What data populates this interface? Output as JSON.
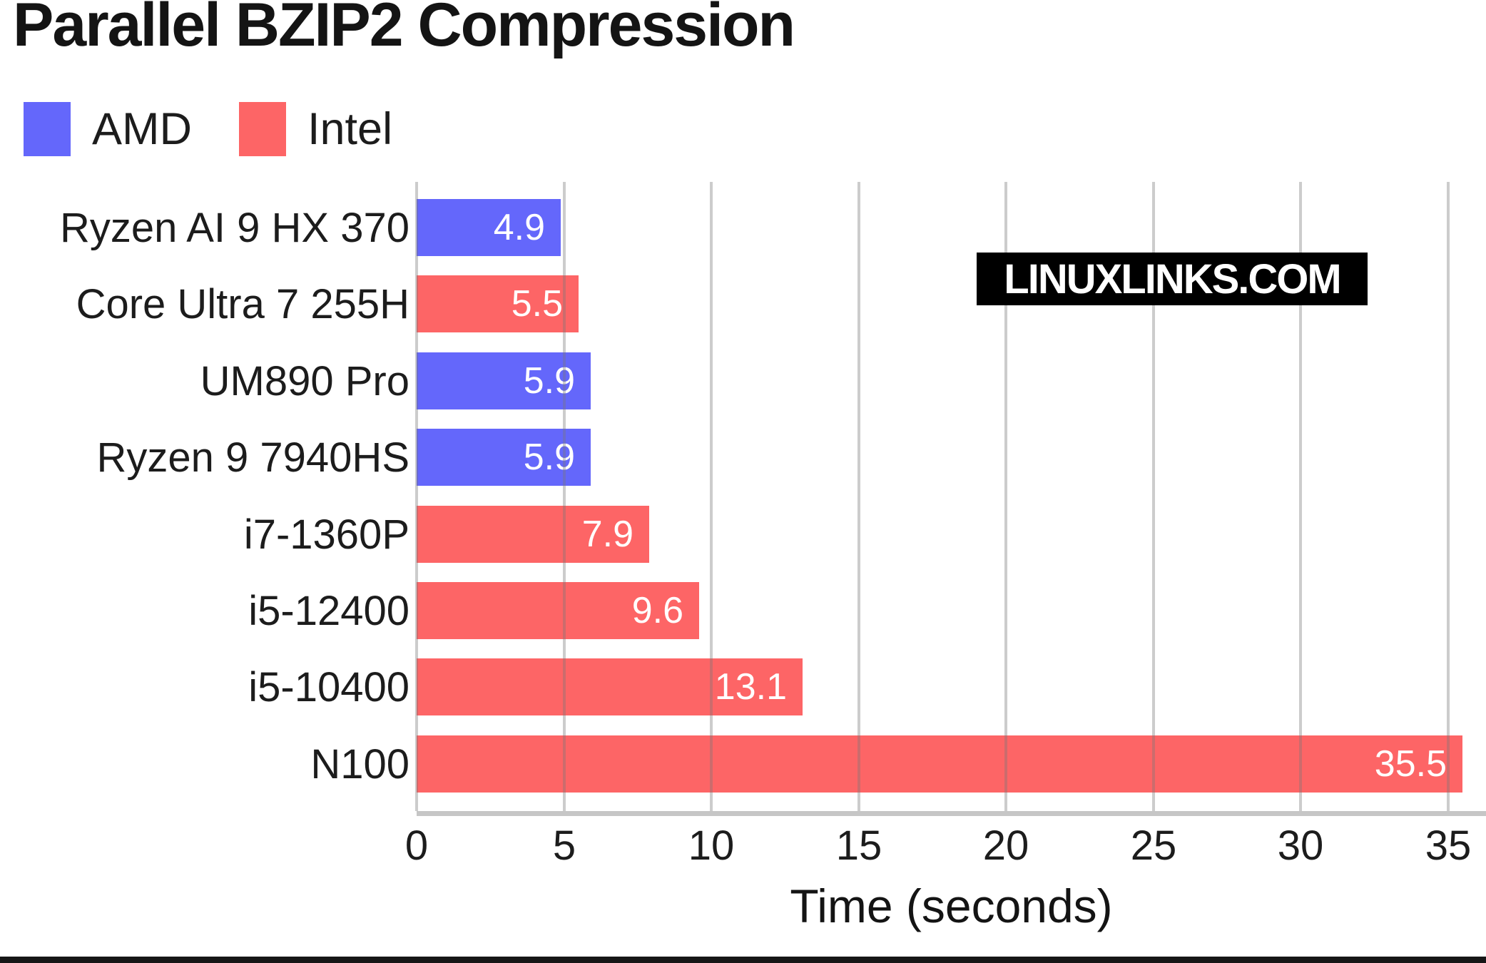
{
  "title": "Parallel BZIP2 Compression",
  "legend": {
    "items": [
      {
        "label": "AMD",
        "color": "#6467fb"
      },
      {
        "label": "Intel",
        "color": "#fd6566"
      }
    ]
  },
  "watermark": {
    "text": "LINUXLINKS.COM"
  },
  "axis": {
    "xlabel": "Time (seconds)",
    "ticks": [
      "0",
      "5",
      "10",
      "15",
      "20",
      "25",
      "30",
      "35"
    ]
  },
  "chart_data": {
    "type": "bar",
    "orientation": "horizontal",
    "title": "Parallel BZIP2 Compression",
    "xlabel": "Time (seconds)",
    "ylabel": "",
    "xlim": [
      0,
      36.3
    ],
    "xticks": [
      0,
      5,
      10,
      15,
      20,
      25,
      30,
      35
    ],
    "grid": true,
    "legend_position": "top-left",
    "value_label_format": "one-decimal-inside-bar-end",
    "categories": [
      "Ryzen AI 9 HX 370",
      "Core Ultra 7 255H",
      "UM890 Pro",
      "Ryzen 9 7940HS",
      "i7-1360P",
      "i5-12400",
      "i5-10400",
      "N100"
    ],
    "values": [
      4.9,
      5.5,
      5.9,
      5.9,
      7.9,
      9.6,
      13.1,
      35.5
    ],
    "point_series": [
      "AMD",
      "Intel",
      "AMD",
      "AMD",
      "Intel",
      "Intel",
      "Intel",
      "Intel"
    ],
    "series_colors": {
      "AMD": "#6467fb",
      "Intel": "#fd6566"
    },
    "colors": {
      "grid": "#cccccc",
      "axis_line": "#c6c6c6",
      "value_label": "#ffffff",
      "text": "#1c1c1c"
    }
  }
}
